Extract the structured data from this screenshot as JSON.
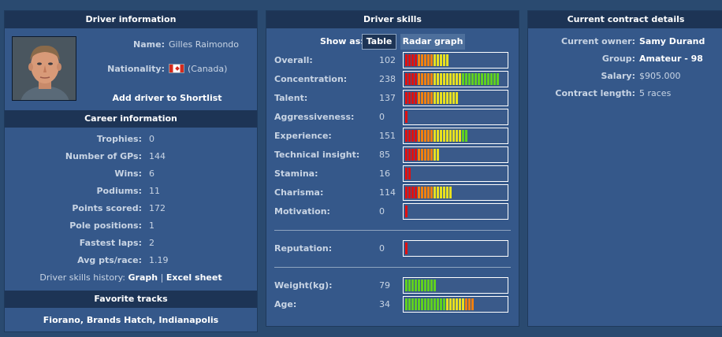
{
  "driver_info": {
    "title": "Driver information",
    "name_label": "Name:",
    "name": "Gilles Raimondo",
    "nationality_label": "Nationality:",
    "nationality": "(Canada)",
    "flag_icon": "canada-flag-icon",
    "shortlist_link": "Add driver to Shortlist"
  },
  "career": {
    "title": "Career information",
    "rows": [
      {
        "label": "Trophies:",
        "value": "0"
      },
      {
        "label": "Number of GPs:",
        "value": "144"
      },
      {
        "label": "Wins:",
        "value": "6"
      },
      {
        "label": "Podiums:",
        "value": "11"
      },
      {
        "label": "Points scored:",
        "value": "172"
      },
      {
        "label": "Pole positions:",
        "value": "1"
      },
      {
        "label": "Fastest laps:",
        "value": "2"
      },
      {
        "label": "Avg pts/race:",
        "value": "1.19"
      }
    ],
    "history_label": "Driver skills history:",
    "graph_link": "Graph",
    "separator": "|",
    "excel_link": "Excel sheet"
  },
  "favorites": {
    "title": "Favorite tracks",
    "tracks": "Fiorano, Brands Hatch, Indianapolis"
  },
  "skills": {
    "title": "Driver skills",
    "show_as_label": "Show as:",
    "table_button": "Table",
    "radar_button": "Radar graph",
    "rows": [
      {
        "label": "Overall:",
        "value": "102",
        "segments": 14,
        "colors": "skill"
      },
      {
        "label": "Concentration:",
        "value": "238",
        "segments": 30,
        "colors": "skill"
      },
      {
        "label": "Talent:",
        "value": "137",
        "segments": 17,
        "colors": "skill"
      },
      {
        "label": "Aggressiveness:",
        "value": "0",
        "segments": 1,
        "colors": "skill"
      },
      {
        "label": "Experience:",
        "value": "151",
        "segments": 20,
        "colors": "skill"
      },
      {
        "label": "Technical insight:",
        "value": "85",
        "segments": 11,
        "colors": "skill"
      },
      {
        "label": "Stamina:",
        "value": "16",
        "segments": 2,
        "colors": "skill"
      },
      {
        "label": "Charisma:",
        "value": "114",
        "segments": 15,
        "colors": "skill"
      },
      {
        "label": "Motivation:",
        "value": "0",
        "segments": 1,
        "colors": "skill"
      }
    ],
    "reputation": {
      "label": "Reputation:",
      "value": "0",
      "segments": 1,
      "colors": "skill"
    },
    "physical": [
      {
        "label": "Weight(kg):",
        "value": "79",
        "segments": 10,
        "colors": "weight"
      },
      {
        "label": "Age:",
        "value": "34",
        "segments": 22,
        "colors": "age"
      }
    ]
  },
  "contract": {
    "title": "Current contract details",
    "rows": [
      {
        "label": "Current owner:",
        "value": "Samy Durand",
        "bold": true
      },
      {
        "label": "Group:",
        "value": "Amateur - 98",
        "bold": true
      },
      {
        "label": "Salary:",
        "value": "$905.000",
        "bold": false
      },
      {
        "label": "Contract length:",
        "value": "5 races",
        "bold": false
      }
    ]
  },
  "colors": {
    "background": "#2a4a70",
    "panel": "#35588a",
    "header": "#1d3455",
    "bar_red": "#e01010",
    "bar_orange": "#f08010",
    "bar_yellow": "#e8e020",
    "bar_green": "#60d020"
  }
}
